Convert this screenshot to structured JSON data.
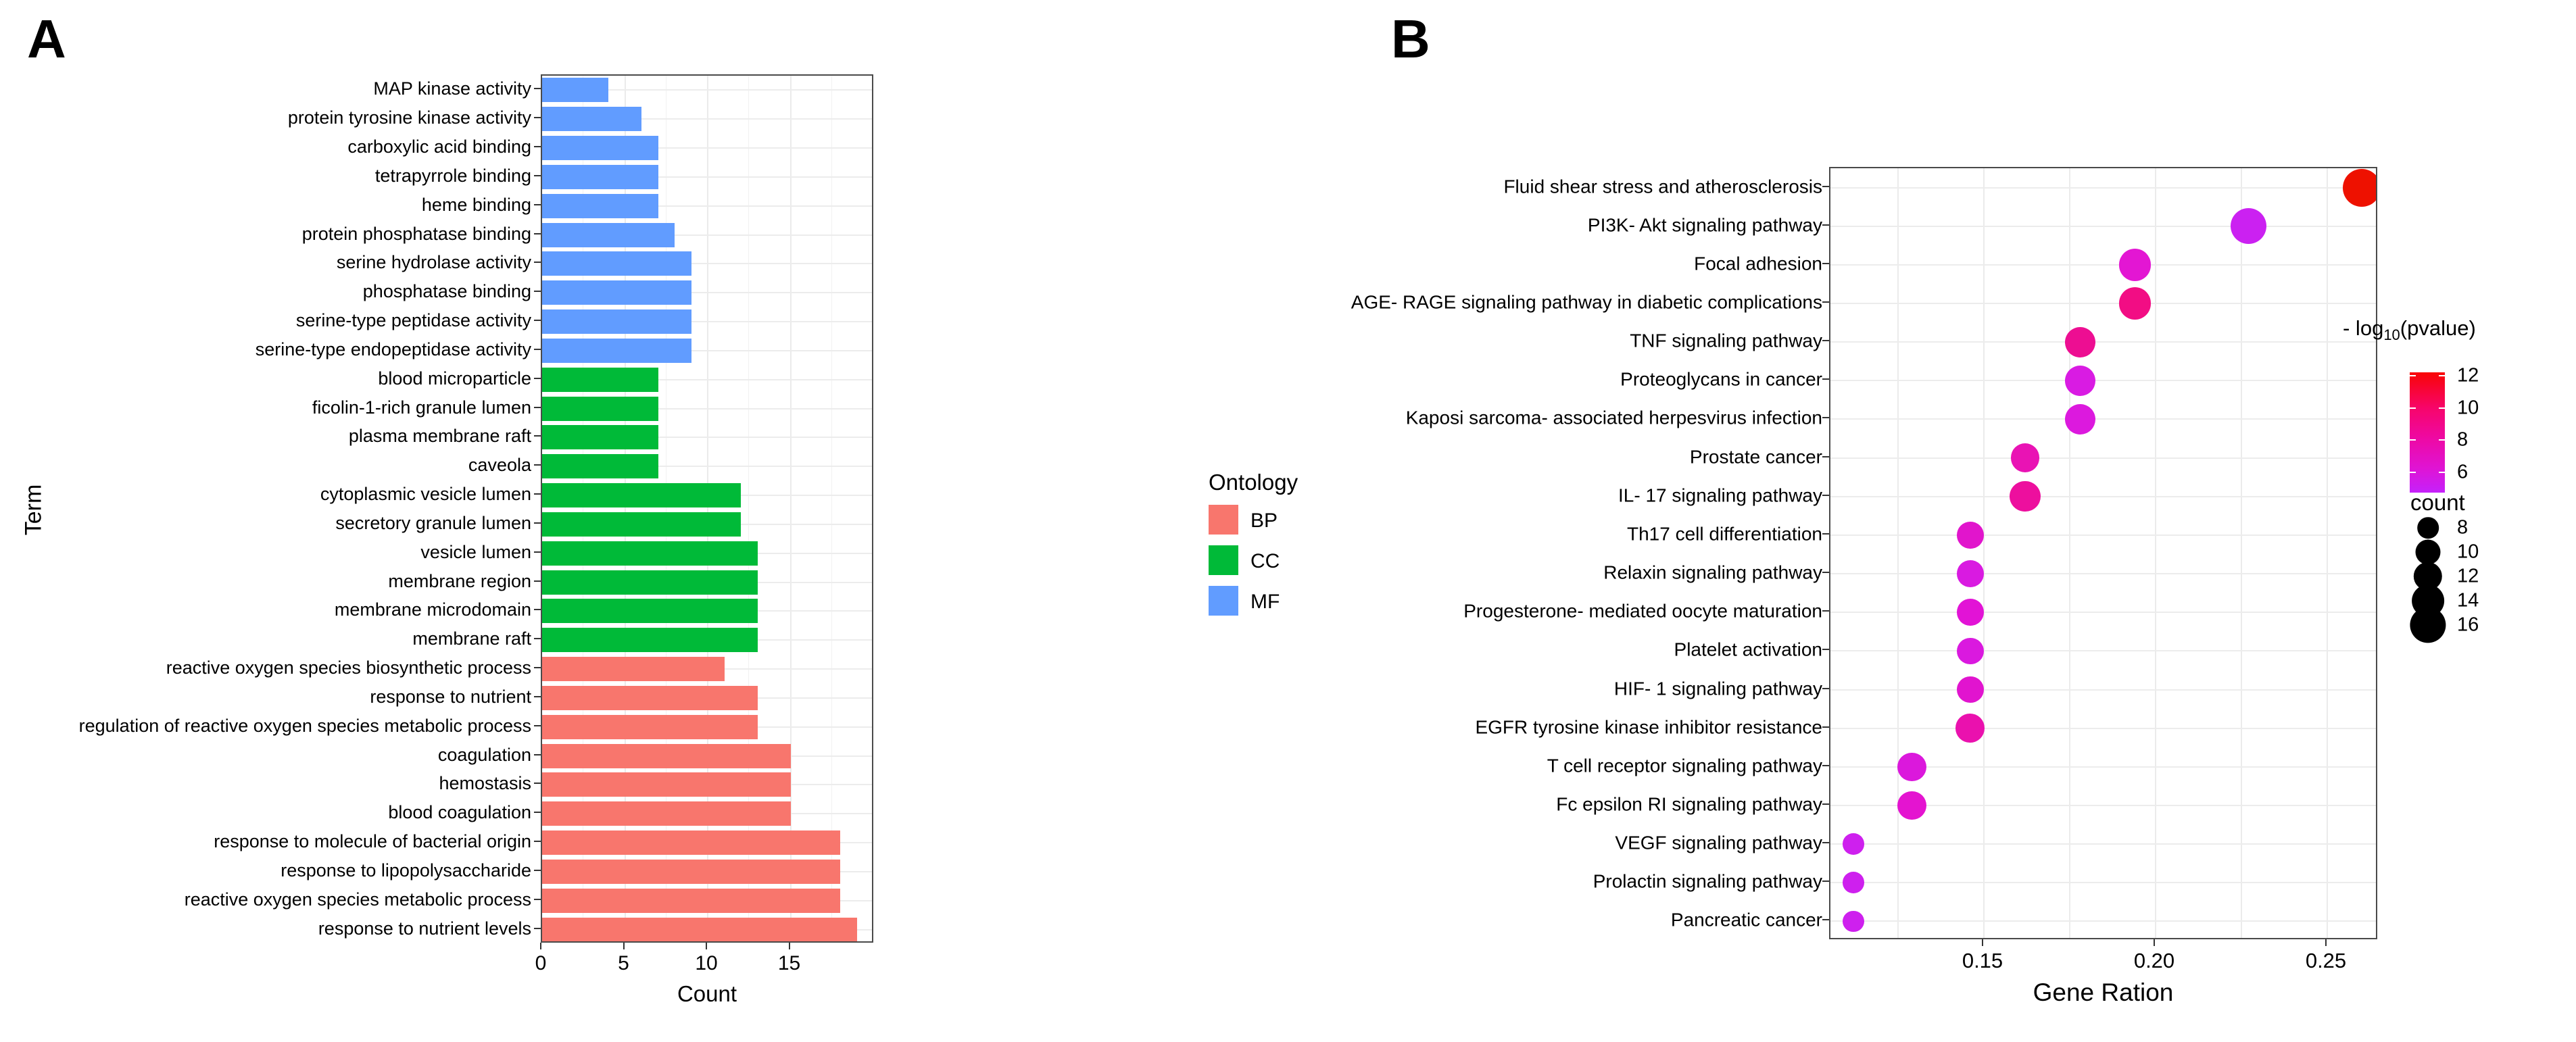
{
  "figure": {
    "background": "#ffffff"
  },
  "chart_data": [
    {
      "type": "bar",
      "panel_label": "A",
      "title": "",
      "xlabel": "Count",
      "ylabel": "Term",
      "xlim": [
        0,
        20
      ],
      "x_ticks": [
        0,
        5,
        10,
        15
      ],
      "grid": true,
      "legend_title": "Ontology",
      "legend_items": [
        {
          "label": "BP",
          "color": "#F8766D"
        },
        {
          "label": "CC",
          "color": "#00BA38"
        },
        {
          "label": "MF",
          "color": "#619CFF"
        }
      ],
      "bars": [
        {
          "term": "MAP kinase activity",
          "ontology": "MF",
          "count": 4
        },
        {
          "term": "protein tyrosine kinase activity",
          "ontology": "MF",
          "count": 6
        },
        {
          "term": "carboxylic acid binding",
          "ontology": "MF",
          "count": 7
        },
        {
          "term": "tetrapyrrole binding",
          "ontology": "MF",
          "count": 7
        },
        {
          "term": "heme binding",
          "ontology": "MF",
          "count": 7
        },
        {
          "term": "protein phosphatase binding",
          "ontology": "MF",
          "count": 8
        },
        {
          "term": "serine hydrolase activity",
          "ontology": "MF",
          "count": 9
        },
        {
          "term": "phosphatase binding",
          "ontology": "MF",
          "count": 9
        },
        {
          "term": "serine-type peptidase activity",
          "ontology": "MF",
          "count": 9
        },
        {
          "term": "serine-type endopeptidase activity",
          "ontology": "MF",
          "count": 9
        },
        {
          "term": "blood microparticle",
          "ontology": "CC",
          "count": 7
        },
        {
          "term": "ficolin-1-rich granule lumen",
          "ontology": "CC",
          "count": 7
        },
        {
          "term": "plasma membrane raft",
          "ontology": "CC",
          "count": 7
        },
        {
          "term": "caveola",
          "ontology": "CC",
          "count": 7
        },
        {
          "term": "cytoplasmic vesicle lumen",
          "ontology": "CC",
          "count": 12
        },
        {
          "term": "secretory granule lumen",
          "ontology": "CC",
          "count": 12
        },
        {
          "term": "vesicle lumen",
          "ontology": "CC",
          "count": 13
        },
        {
          "term": "membrane region",
          "ontology": "CC",
          "count": 13
        },
        {
          "term": "membrane microdomain",
          "ontology": "CC",
          "count": 13
        },
        {
          "term": "membrane raft",
          "ontology": "CC",
          "count": 13
        },
        {
          "term": "reactive oxygen species biosynthetic process",
          "ontology": "BP",
          "count": 11
        },
        {
          "term": "response to nutrient",
          "ontology": "BP",
          "count": 13
        },
        {
          "term": "regulation of reactive oxygen species metabolic process",
          "ontology": "BP",
          "count": 13
        },
        {
          "term": "coagulation",
          "ontology": "BP",
          "count": 15
        },
        {
          "term": "hemostasis",
          "ontology": "BP",
          "count": 15
        },
        {
          "term": "blood coagulation",
          "ontology": "BP",
          "count": 15
        },
        {
          "term": "response to molecule of bacterial origin",
          "ontology": "BP",
          "count": 18
        },
        {
          "term": "response to lipopolysaccharide",
          "ontology": "BP",
          "count": 18
        },
        {
          "term": "reactive oxygen species metabolic process",
          "ontology": "BP",
          "count": 18
        },
        {
          "term": "response to nutrient levels",
          "ontology": "BP",
          "count": 19
        }
      ]
    },
    {
      "type": "scatter",
      "panel_label": "B",
      "title": "",
      "xlabel": "Gene Ration",
      "xlim": [
        0.105,
        0.265
      ],
      "x_ticks": [
        "0.15",
        "0.20",
        "0.25"
      ],
      "x_tick_values": [
        0.15,
        0.2,
        0.25
      ],
      "grid": true,
      "color_legend": {
        "title_prefix": "- log",
        "title_sub": "10",
        "title_suffix": "(pvalue)",
        "ticks": [
          12,
          10,
          8,
          6
        ],
        "gradient": [
          "#F90505 0%",
          "#F7056B 30%",
          "#EE09A4 55%",
          "#DF14D4 80%",
          "#C521FB 100%"
        ]
      },
      "size_legend": {
        "title": "count",
        "sizes": [
          8,
          10,
          12,
          14,
          16
        ]
      },
      "points": [
        {
          "pathway": "Fluid shear stress and atherosclerosis",
          "gene_ratio": 0.26,
          "count": 17,
          "neg_log10_pvalue": 12.0,
          "color": "#EE1100"
        },
        {
          "pathway": "PI3K- Akt signaling pathway",
          "gene_ratio": 0.227,
          "count": 16,
          "neg_log10_pvalue": 6.0,
          "color": "#CB21F1"
        },
        {
          "pathway": "Focal adhesion",
          "gene_ratio": 0.194,
          "count": 14,
          "neg_log10_pvalue": 7.0,
          "color": "#E316D3"
        },
        {
          "pathway": "AGE- RAGE signaling pathway in diabetic complications",
          "gene_ratio": 0.194,
          "count": 14,
          "neg_log10_pvalue": 10.0,
          "color": "#F20D84"
        },
        {
          "pathway": "TNF signaling pathway",
          "gene_ratio": 0.178,
          "count": 13,
          "neg_log10_pvalue": 9.5,
          "color": "#ED0E92"
        },
        {
          "pathway": "Proteoglycans in cancer",
          "gene_ratio": 0.178,
          "count": 13,
          "neg_log10_pvalue": 6.5,
          "color": "#D91BE3"
        },
        {
          "pathway": "Kaposi sarcoma- associated herpesvirus infection",
          "gene_ratio": 0.178,
          "count": 13,
          "neg_log10_pvalue": 6.5,
          "color": "#DC19DE"
        },
        {
          "pathway": "Prostate cancer",
          "gene_ratio": 0.162,
          "count": 12,
          "neg_log10_pvalue": 8.0,
          "color": "#E913B4"
        },
        {
          "pathway": "IL- 17 signaling pathway",
          "gene_ratio": 0.162,
          "count": 13,
          "neg_log10_pvalue": 9.0,
          "color": "#ED0F9E"
        },
        {
          "pathway": "Th17 cell differentiation",
          "gene_ratio": 0.146,
          "count": 11,
          "neg_log10_pvalue": 7.0,
          "color": "#E115CC"
        },
        {
          "pathway": "Relaxin signaling pathway",
          "gene_ratio": 0.146,
          "count": 11,
          "neg_log10_pvalue": 6.5,
          "color": "#D91AE1"
        },
        {
          "pathway": "Progesterone- mediated oocyte maturation",
          "gene_ratio": 0.146,
          "count": 11,
          "neg_log10_pvalue": 7.0,
          "color": "#E213D6"
        },
        {
          "pathway": "Platelet activation",
          "gene_ratio": 0.146,
          "count": 11,
          "neg_log10_pvalue": 6.5,
          "color": "#DA19DF"
        },
        {
          "pathway": "HIF- 1 signaling pathway",
          "gene_ratio": 0.146,
          "count": 11,
          "neg_log10_pvalue": 7.0,
          "color": "#E114CF"
        },
        {
          "pathway": "EGFR tyrosine kinase inhibitor resistance",
          "gene_ratio": 0.146,
          "count": 12,
          "neg_log10_pvalue": 8.3,
          "color": "#EA11AE"
        },
        {
          "pathway": "T cell receptor signaling pathway",
          "gene_ratio": 0.129,
          "count": 12,
          "neg_log10_pvalue": 6.5,
          "color": "#DB18DC"
        },
        {
          "pathway": "Fc epsilon RI signaling pathway",
          "gene_ratio": 0.129,
          "count": 12,
          "neg_log10_pvalue": 7.0,
          "color": "#E414D0"
        },
        {
          "pathway": "VEGF signaling pathway",
          "gene_ratio": 0.112,
          "count": 8,
          "neg_log10_pvalue": 6.0,
          "color": "#CE20EE"
        },
        {
          "pathway": "Prolactin signaling pathway",
          "gene_ratio": 0.112,
          "count": 8,
          "neg_log10_pvalue": 6.0,
          "color": "#CE20EE"
        },
        {
          "pathway": "Pancreatic cancer",
          "gene_ratio": 0.112,
          "count": 8,
          "neg_log10_pvalue": 6.0,
          "color": "#CE20EE"
        }
      ]
    }
  ]
}
